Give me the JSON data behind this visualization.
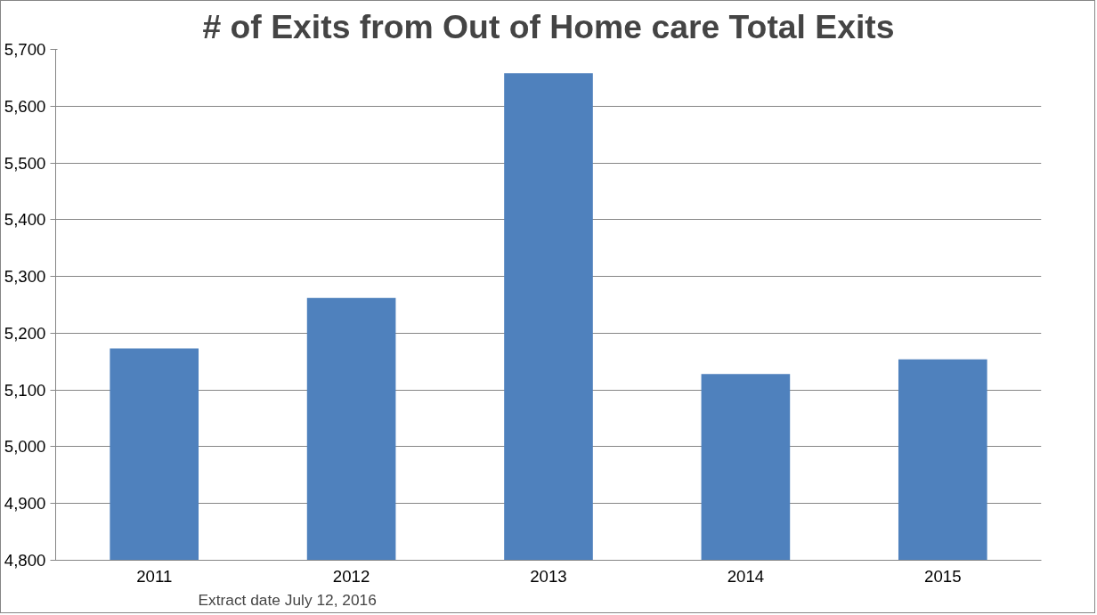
{
  "chart_data": {
    "type": "bar",
    "title": "# of Exits from Out of Home care Total Exits",
    "categories": [
      "2011",
      "2012",
      "2013",
      "2014",
      "2015"
    ],
    "series": [
      {
        "color": "#4f81bd",
        "values": [
          5173,
          5262,
          5658,
          5128,
          5154
        ]
      }
    ],
    "ylim": [
      4800,
      5700
    ],
    "yticks": [
      {
        "value": 4800,
        "label": "4,800"
      },
      {
        "value": 4900,
        "label": "4,900"
      },
      {
        "value": 5000,
        "label": "5,000"
      },
      {
        "value": 5100,
        "label": "5,100"
      },
      {
        "value": 5200,
        "label": "5,200"
      },
      {
        "value": 5300,
        "label": "5,300"
      },
      {
        "value": 5400,
        "label": "5,400"
      },
      {
        "value": 5500,
        "label": "5,500"
      },
      {
        "value": 5600,
        "label": "5,600"
      },
      {
        "value": 5700,
        "label": "5,700"
      }
    ],
    "grid": "y",
    "annotations": [
      "Extract date July 12, 2016"
    ]
  }
}
